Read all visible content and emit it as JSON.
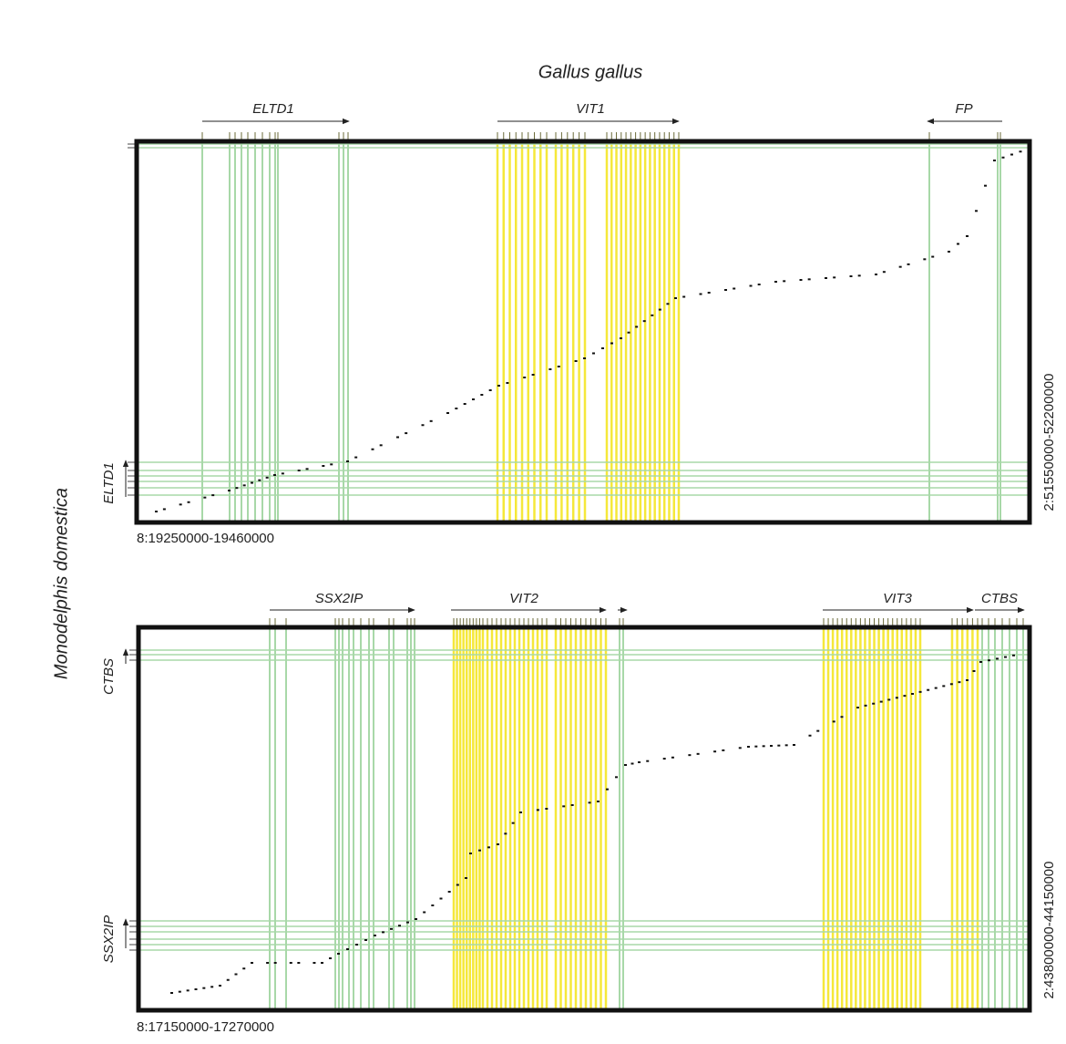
{
  "title": "Gallus gallus",
  "side_label": "Monodelphis domestica",
  "panels": [
    {
      "top_genes": [
        "ELTD1",
        "VIT1",
        "FP"
      ],
      "left_genes": [
        "ELTD1"
      ],
      "bottom_range": "8:19250000-19460000",
      "right_range": "2:51550000-52200000"
    },
    {
      "top_genes": [
        "SSX2IP",
        "VIT2",
        "VIT3",
        "CTBS"
      ],
      "left_genes": [
        "CTBS",
        "SSX2IP"
      ],
      "bottom_range": "8:17150000-17270000",
      "right_range": "2:43800000-44150000"
    }
  ]
}
